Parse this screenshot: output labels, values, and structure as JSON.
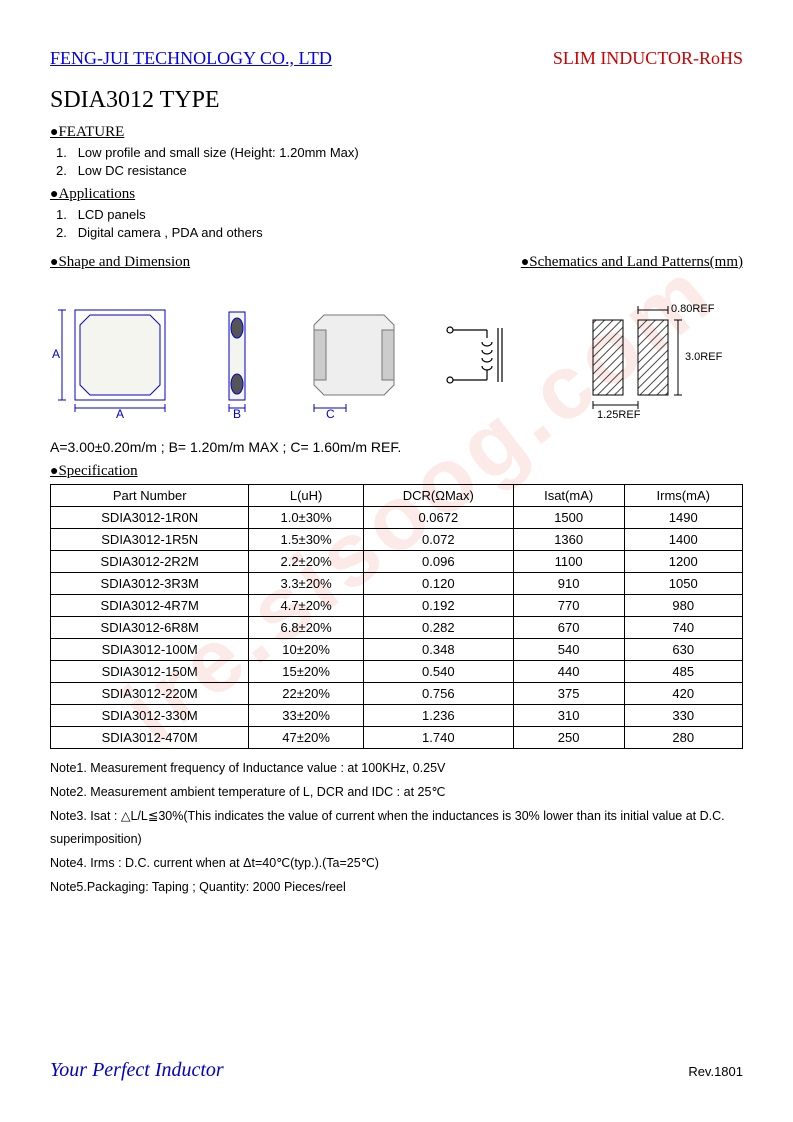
{
  "header": {
    "company": "FENG-JUI TECHNOLOGY CO., LTD",
    "product_type": "SLIM INDUCTOR-RoHS"
  },
  "title": "SDIA3012 TYPE",
  "sections": {
    "feature": {
      "heading": "FEATURE",
      "items": [
        "Low profile and small size (Height: 1.20mm Max)",
        "Low DC resistance"
      ]
    },
    "applications": {
      "heading": "Applications",
      "items": [
        "LCD panels",
        "Digital camera , PDA and others"
      ]
    },
    "shape": {
      "heading": "Shape and Dimension"
    },
    "schematic": {
      "heading": "Schematics and Land Patterns(mm)"
    },
    "specification": {
      "heading": "Specification"
    }
  },
  "diagram": {
    "label_a": "A",
    "label_b": "B",
    "label_c": "C",
    "ref_080": "0.80REF",
    "ref_30": "3.0REF",
    "ref_125": "1.25REF",
    "shape_color": "#0000cc",
    "footprint_color": "#444444"
  },
  "dimensions": "A=3.00±0.20m/m ; B= 1.20m/m MAX ; C= 1.60m/m REF.",
  "spec_table": {
    "columns": [
      "Part Number",
      "L(uH)",
      "DCR(ΩMax)",
      "Isat(mA)",
      "Irms(mA)"
    ],
    "rows": [
      [
        "SDIA3012-1R0N",
        "1.0±30%",
        "0.0672",
        "1500",
        "1490"
      ],
      [
        "SDIA3012-1R5N",
        "1.5±30%",
        "0.072",
        "1360",
        "1400"
      ],
      [
        "SDIA3012-2R2M",
        "2.2±20%",
        "0.096",
        "1100",
        "1200"
      ],
      [
        "SDIA3012-3R3M",
        "3.3±20%",
        "0.120",
        "910",
        "1050"
      ],
      [
        "SDIA3012-4R7M",
        "4.7±20%",
        "0.192",
        "770",
        "980"
      ],
      [
        "SDIA3012-6R8M",
        "6.8±20%",
        "0.282",
        "670",
        "740"
      ],
      [
        "SDIA3012-100M",
        "10±20%",
        "0.348",
        "540",
        "630"
      ],
      [
        "SDIA3012-150M",
        "15±20%",
        "0.540",
        "440",
        "485"
      ],
      [
        "SDIA3012-220M",
        "22±20%",
        "0.756",
        "375",
        "420"
      ],
      [
        "SDIA3012-330M",
        "33±20%",
        "1.236",
        "310",
        "330"
      ],
      [
        "SDIA3012-470M",
        "47±20%",
        "1.740",
        "250",
        "280"
      ]
    ]
  },
  "notes": [
    "Note1. Measurement frequency of Inductance value : at 100KHz, 0.25V",
    "Note2. Measurement ambient temperature of L, DCR and IDC : at 25℃",
    "Note3. Isat : △L/L≦30%(This indicates the value of current when the inductances is 30% lower than its initial value at D.C. superimposition)",
    "Note4. Irms : D.C. current when at Δt=40℃(typ.).(Ta=25℃)",
    "Note5.Packaging: Taping ; Quantity: 2000 Pieces/reel"
  ],
  "footer": {
    "slogan": "Your Perfect Inductor",
    "rev": "Rev.1801"
  },
  "watermark": "ire.sisoog.com"
}
